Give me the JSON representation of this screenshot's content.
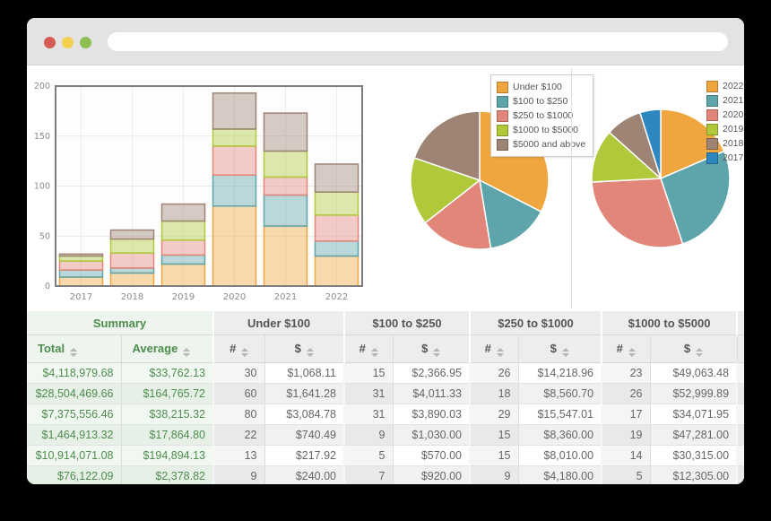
{
  "window": {
    "url": "",
    "traffic_lights": {
      "close": "#d45b56",
      "minimize": "#f5cf50",
      "zoom": "#8dbf52"
    }
  },
  "colors": {
    "summary_text": "#4d8c4d",
    "chrome_bar": "#e3e3e3",
    "grid_border": "#7d7d7d"
  },
  "chart_data": [
    {
      "type": "bar",
      "stacked": true,
      "title": "",
      "xlabel": "",
      "ylabel": "",
      "categories": [
        "2017",
        "2018",
        "2019",
        "2020",
        "2021",
        "2022"
      ],
      "series": [
        {
          "name": "Under $100",
          "color": "#efa63e",
          "values": [
            9,
            13,
            22,
            80,
            60,
            30
          ]
        },
        {
          "name": "$100 to $250",
          "color": "#5da5aa",
          "values": [
            7,
            5,
            9,
            31,
            31,
            15
          ]
        },
        {
          "name": "$250 to $1000",
          "color": "#e2867a",
          "values": [
            9,
            15,
            15,
            29,
            18,
            26
          ]
        },
        {
          "name": "$1000 to $5000",
          "color": "#afc93b",
          "values": [
            5,
            14,
            19,
            17,
            26,
            23
          ]
        },
        {
          "name": "$5000 and above",
          "color": "#9e8475",
          "values": [
            2,
            9,
            17,
            36,
            38,
            28
          ]
        }
      ],
      "ylim": [
        0,
        200
      ],
      "yticks": [
        0,
        50,
        100,
        150,
        200
      ],
      "grid": true,
      "legend_position": "none"
    },
    {
      "type": "pie",
      "title": "",
      "labels": [
        "Under $100",
        "$100 to $250",
        "$250 to $1000",
        "$1000 to $5000",
        "$5000 and above"
      ],
      "values": [
        214,
        98,
        112,
        104,
        130
      ],
      "colors": [
        "#efa63e",
        "#5da5aa",
        "#e2867a",
        "#afc93b",
        "#9e8475"
      ],
      "legend_position": "top-right"
    },
    {
      "type": "pie",
      "title": "",
      "labels": [
        "2022",
        "2021",
        "2020",
        "2019",
        "2018",
        "2017"
      ],
      "values": [
        122,
        173,
        193,
        82,
        56,
        32
      ],
      "colors": [
        "#efa63e",
        "#5da5aa",
        "#e2867a",
        "#afc93b",
        "#9e8475",
        "#2e87be"
      ],
      "legend_position": "top-right"
    }
  ],
  "table": {
    "groups": [
      {
        "label": "Summary",
        "style": "summary",
        "columns": [
          "Total",
          "Average"
        ]
      },
      {
        "label": "Under $100",
        "style": "plain",
        "columns": [
          "#",
          "$"
        ]
      },
      {
        "label": "$100 to $250",
        "style": "plain",
        "columns": [
          "#",
          "$"
        ]
      },
      {
        "label": "$250 to $1000",
        "style": "plain",
        "columns": [
          "#",
          "$"
        ]
      },
      {
        "label": "$1000 to $5000",
        "style": "plain",
        "columns": [
          "#",
          "$"
        ]
      }
    ],
    "rows": [
      [
        "$4,118,979.68",
        "$33,762.13",
        "30",
        "$1,068.11",
        "15",
        "$2,366.95",
        "26",
        "$14,218.96",
        "23",
        "$49,063.48"
      ],
      [
        "$28,504,469.66",
        "$164,765.72",
        "60",
        "$1,641.28",
        "31",
        "$4,011.33",
        "18",
        "$8,560.70",
        "26",
        "$52,999.89"
      ],
      [
        "$7,375,556.46",
        "$38,215.32",
        "80",
        "$3,084.78",
        "31",
        "$3,890.03",
        "29",
        "$15,547.01",
        "17",
        "$34,071.95"
      ],
      [
        "$1,464,913.32",
        "$17,864.80",
        "22",
        "$740.49",
        "9",
        "$1,030.00",
        "15",
        "$8,360.00",
        "19",
        "$47,281.00"
      ],
      [
        "$10,914,071.08",
        "$194,894.13",
        "13",
        "$217.92",
        "5",
        "$570.00",
        "15",
        "$8,010.00",
        "14",
        "$30,315.00"
      ],
      [
        "$76,122.09",
        "$2,378.82",
        "9",
        "$240.00",
        "7",
        "$920.00",
        "9",
        "$4,180.00",
        "5",
        "$12,305.00"
      ]
    ]
  }
}
